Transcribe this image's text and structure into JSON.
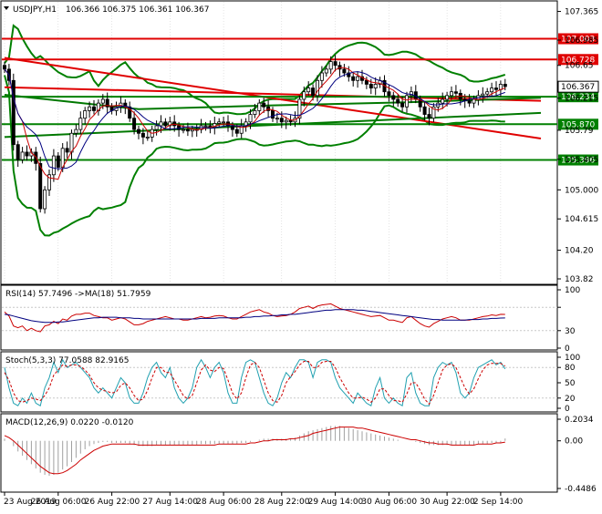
{
  "colors": {
    "bg": "#ffffff",
    "border": "#000000",
    "grid": "#c8c8c8",
    "resistance_line": "#e00000",
    "support_line": "#007800",
    "band": "#008000",
    "ma_fast": "#cc0000",
    "ma_slow": "#000080",
    "price_label_red": "#e00000",
    "price_label_green": "#008000",
    "current_price_bg": "#ffffff",
    "rsi_line": "#cc0000",
    "rsi_ma": "#000080",
    "stoch_main": "#20a0b0",
    "stoch_signal": "#cc0000",
    "macd_hist": "#a0a0a0",
    "macd_signal": "#cc0000"
  },
  "header": {
    "symbol_text": "USDJPY,H1",
    "ohlc_text": "106.366 106.375 106.361 106.367",
    "collapse_icon": "triangle-down-icon"
  },
  "chart_data": [
    {
      "type": "candlestick",
      "title": "USDJPY,H1",
      "ylim": [
        103.82,
        107.42
      ],
      "y_ticks": [
        107.365,
        106.985,
        106.65,
        106.215,
        105.79,
        105.405,
        105.0,
        104.615,
        104.2,
        103.82
      ],
      "y_tick_labels": [
        "107.365",
        "106.985",
        "106.65",
        "106.215",
        "105.79",
        "105.405",
        "105.000",
        "104.615",
        "104.20",
        "103.82"
      ],
      "current_price": 106.367,
      "horizontal_levels": [
        {
          "value": 107.003,
          "label": "107.003",
          "color": "red"
        },
        {
          "value": 106.728,
          "label": "106.728",
          "color": "red"
        },
        {
          "value": 106.234,
          "label": "106.234",
          "color": "green"
        },
        {
          "value": 105.87,
          "label": "105.870",
          "color": "green"
        },
        {
          "value": 105.396,
          "label": "105.396",
          "color": "green"
        }
      ],
      "trend_lines": [
        {
          "color": "red",
          "points": [
            [
              0,
              106.75
            ],
            [
              120,
              105.68
            ]
          ]
        },
        {
          "color": "red",
          "points": [
            [
              0,
              106.36
            ],
            [
              120,
              106.18
            ]
          ]
        },
        {
          "color": "green",
          "points": [
            [
              0,
              105.7
            ],
            [
              120,
              106.02
            ]
          ]
        },
        {
          "color": "green",
          "points": [
            [
              0,
              106.26
            ],
            [
              30,
              106.07
            ],
            [
              60,
              106.12
            ],
            [
              90,
              106.16
            ],
            [
              120,
              106.22
            ]
          ]
        }
      ],
      "x_range": [
        0,
        120
      ],
      "x_tick_positions": [
        0,
        12,
        24,
        37,
        49,
        62,
        74,
        86,
        99,
        111
      ],
      "x_tick_labels": [
        "23 Aug 2019",
        "26 Aug 06:00",
        "26 Aug 22:00",
        "27 Aug 14:00",
        "28 Aug 06:00",
        "28 Aug 22:00",
        "29 Aug 14:00",
        "30 Aug 06:00",
        "30 Aug 22:00",
        "2 Sep 14:00"
      ],
      "close_series": [
        106.6,
        106.45,
        105.6,
        105.4,
        105.5,
        105.45,
        105.5,
        105.35,
        104.75,
        105.0,
        105.2,
        105.45,
        105.3,
        105.55,
        105.5,
        105.75,
        105.8,
        105.95,
        106.05,
        106.1,
        106.05,
        106.15,
        106.2,
        106.1,
        106.05,
        106.1,
        106.15,
        106.1,
        105.95,
        105.8,
        105.75,
        105.7,
        105.7,
        105.8,
        105.85,
        105.9,
        105.85,
        105.9,
        105.85,
        105.8,
        105.8,
        105.78,
        105.8,
        105.8,
        105.85,
        105.85,
        105.83,
        105.88,
        105.9,
        105.9,
        105.85,
        105.8,
        105.75,
        105.85,
        105.9,
        106.0,
        106.05,
        106.15,
        106.1,
        106.05,
        105.95,
        105.95,
        105.9,
        105.92,
        105.9,
        105.95,
        106.2,
        106.3,
        106.35,
        106.25,
        106.45,
        106.55,
        106.6,
        106.7,
        106.65,
        106.6,
        106.55,
        106.5,
        106.45,
        106.5,
        106.45,
        106.4,
        106.35,
        106.4,
        106.45,
        106.3,
        106.25,
        106.2,
        106.15,
        106.1,
        106.25,
        106.3,
        106.2,
        106.1,
        106.0,
        105.95,
        106.1,
        106.15,
        106.2,
        106.25,
        106.3,
        106.28,
        106.2,
        106.18,
        106.15,
        106.2,
        106.25,
        106.27,
        106.3,
        106.35,
        106.33,
        106.4,
        106.37
      ]
    },
    {
      "type": "line",
      "title": "RSI(14) 57.7496 ->MA(18) 51.7959",
      "ylim": [
        0,
        100
      ],
      "y_ticks": [
        100,
        70,
        30,
        0
      ],
      "y_tick_labels": [
        "100",
        "",
        "30",
        "0"
      ],
      "levels": [
        70,
        30
      ],
      "series": [
        {
          "name": "RSI(14)",
          "values": [
            62,
            55,
            38,
            35,
            38,
            30,
            34,
            30,
            28,
            38,
            40,
            46,
            42,
            50,
            48,
            55,
            58,
            58,
            60,
            60,
            56,
            54,
            52,
            52,
            48,
            50,
            52,
            50,
            45,
            40,
            40,
            42,
            46,
            48,
            50,
            52,
            54,
            52,
            50,
            50,
            48,
            48,
            50,
            52,
            54,
            52,
            53,
            55,
            56,
            55,
            52,
            50,
            50,
            54,
            58,
            62,
            64,
            66,
            62,
            60,
            56,
            54,
            55,
            56,
            58,
            62,
            68,
            70,
            72,
            68,
            72,
            74,
            75,
            76,
            72,
            68,
            66,
            64,
            62,
            60,
            58,
            56,
            54,
            55,
            56,
            52,
            48,
            48,
            46,
            44,
            52,
            54,
            48,
            42,
            38,
            36,
            42,
            46,
            50,
            52,
            54,
            52,
            48,
            48,
            48,
            50,
            52,
            54,
            55,
            57,
            56,
            58,
            57.7496
          ]
        },
        {
          "name": "MA(18)",
          "values": [
            58,
            57,
            55,
            53,
            51,
            49,
            47,
            46,
            45,
            44,
            44,
            44,
            45,
            45,
            46,
            47,
            48,
            49,
            50,
            51,
            52,
            52,
            53,
            53,
            53,
            53,
            52,
            52,
            52,
            51,
            51,
            50,
            50,
            50,
            50,
            50,
            50,
            50,
            50,
            50,
            50,
            50,
            50,
            50,
            51,
            51,
            51,
            51,
            52,
            52,
            52,
            52,
            52,
            52,
            53,
            53,
            54,
            54,
            55,
            55,
            56,
            56,
            57,
            57,
            58,
            58,
            59,
            60,
            61,
            62,
            63,
            64,
            65,
            65,
            66,
            66,
            66,
            66,
            66,
            65,
            65,
            64,
            63,
            62,
            61,
            60,
            59,
            58,
            57,
            56,
            55,
            54,
            53,
            52,
            51,
            50,
            49,
            49,
            48,
            48,
            48,
            48,
            48,
            48,
            49,
            49,
            49,
            50,
            50,
            51,
            51,
            51.5,
            51.7959
          ]
        }
      ]
    },
    {
      "type": "line",
      "title": "Stoch(5,3,3) 77.0588 82.9165",
      "ylim": [
        0,
        100
      ],
      "y_ticks": [
        100,
        80,
        50,
        20,
        0
      ],
      "y_tick_labels": [
        "100",
        "80",
        "50",
        "20",
        "0"
      ],
      "levels": [
        80,
        20
      ],
      "series": [
        {
          "name": "%K",
          "values": [
            80,
            40,
            10,
            5,
            20,
            10,
            30,
            10,
            5,
            40,
            60,
            90,
            70,
            95,
            80,
            85,
            90,
            80,
            70,
            60,
            40,
            30,
            40,
            30,
            20,
            40,
            60,
            50,
            20,
            10,
            10,
            30,
            60,
            80,
            90,
            70,
            60,
            80,
            40,
            20,
            10,
            20,
            40,
            80,
            95,
            80,
            60,
            80,
            90,
            70,
            30,
            10,
            10,
            60,
            90,
            95,
            90,
            60,
            30,
            10,
            5,
            20,
            50,
            70,
            60,
            80,
            95,
            95,
            90,
            60,
            90,
            95,
            95,
            90,
            60,
            40,
            30,
            20,
            10,
            30,
            20,
            10,
            5,
            40,
            60,
            20,
            10,
            20,
            10,
            5,
            60,
            70,
            30,
            10,
            5,
            5,
            60,
            80,
            90,
            85,
            90,
            70,
            30,
            20,
            30,
            60,
            80,
            85,
            90,
            95,
            85,
            90,
            77.0588
          ]
        },
        {
          "name": "%D",
          "values": [
            70,
            55,
            30,
            15,
            12,
            15,
            20,
            18,
            15,
            25,
            40,
            65,
            75,
            85,
            82,
            85,
            85,
            82,
            75,
            65,
            50,
            40,
            35,
            33,
            30,
            32,
            45,
            50,
            40,
            25,
            15,
            18,
            35,
            60,
            80,
            80,
            70,
            70,
            55,
            40,
            25,
            18,
            25,
            50,
            75,
            85,
            75,
            72,
            80,
            78,
            55,
            30,
            18,
            30,
            60,
            85,
            90,
            80,
            55,
            30,
            15,
            12,
            25,
            50,
            62,
            72,
            85,
            92,
            92,
            80,
            80,
            90,
            92,
            92,
            80,
            60,
            45,
            30,
            20,
            20,
            22,
            18,
            12,
            20,
            38,
            38,
            25,
            15,
            15,
            12,
            28,
            50,
            50,
            35,
            18,
            8,
            25,
            50,
            75,
            85,
            87,
            80,
            60,
            40,
            28,
            38,
            58,
            75,
            85,
            88,
            88,
            88,
            82.9165
          ]
        }
      ]
    },
    {
      "type": "bar",
      "title": "MACD(12,26,9) 0.0220 -0.0120",
      "ylim": [
        -0.4486,
        0.2034
      ],
      "y_ticks": [
        0.2034,
        0.0,
        -0.4486
      ],
      "y_tick_labels": [
        "0.2034",
        "0.00",
        "-0.4486"
      ],
      "series": [
        {
          "name": "MACD",
          "values": [
            0.02,
            0.0,
            -0.05,
            -0.1,
            -0.14,
            -0.18,
            -0.22,
            -0.26,
            -0.3,
            -0.32,
            -0.33,
            -0.32,
            -0.3,
            -0.27,
            -0.24,
            -0.2,
            -0.16,
            -0.12,
            -0.08,
            -0.05,
            -0.03,
            -0.02,
            -0.01,
            -0.01,
            -0.02,
            -0.02,
            -0.02,
            -0.02,
            -0.03,
            -0.04,
            -0.05,
            -0.05,
            -0.05,
            -0.05,
            -0.04,
            -0.04,
            -0.04,
            -0.04,
            -0.04,
            -0.04,
            -0.04,
            -0.04,
            -0.04,
            -0.04,
            -0.03,
            -0.03,
            -0.03,
            -0.03,
            -0.03,
            -0.03,
            -0.03,
            -0.03,
            -0.03,
            -0.02,
            -0.02,
            -0.01,
            0.0,
            0.01,
            0.02,
            0.02,
            0.02,
            0.02,
            0.02,
            0.02,
            0.02,
            0.03,
            0.05,
            0.07,
            0.09,
            0.1,
            0.11,
            0.12,
            0.13,
            0.14,
            0.14,
            0.14,
            0.13,
            0.12,
            0.11,
            0.1,
            0.09,
            0.08,
            0.07,
            0.06,
            0.05,
            0.04,
            0.03,
            0.02,
            0.01,
            0.0,
            0.0,
            0.0,
            -0.01,
            -0.02,
            -0.03,
            -0.04,
            -0.04,
            -0.04,
            -0.04,
            -0.04,
            -0.04,
            -0.04,
            -0.04,
            -0.04,
            -0.04,
            -0.04,
            -0.03,
            -0.03,
            -0.03,
            -0.02,
            -0.02,
            -0.02,
            0.022
          ]
        },
        {
          "name": "Signal",
          "values": [
            0.05,
            0.03,
            0.0,
            -0.04,
            -0.08,
            -0.12,
            -0.16,
            -0.2,
            -0.24,
            -0.27,
            -0.3,
            -0.31,
            -0.31,
            -0.3,
            -0.28,
            -0.25,
            -0.22,
            -0.18,
            -0.15,
            -0.12,
            -0.09,
            -0.07,
            -0.05,
            -0.04,
            -0.03,
            -0.03,
            -0.03,
            -0.03,
            -0.03,
            -0.03,
            -0.04,
            -0.04,
            -0.04,
            -0.04,
            -0.04,
            -0.04,
            -0.04,
            -0.04,
            -0.04,
            -0.04,
            -0.04,
            -0.04,
            -0.04,
            -0.04,
            -0.04,
            -0.04,
            -0.04,
            -0.04,
            -0.03,
            -0.03,
            -0.03,
            -0.03,
            -0.03,
            -0.03,
            -0.03,
            -0.02,
            -0.02,
            -0.01,
            0.0,
            0.0,
            0.01,
            0.01,
            0.01,
            0.01,
            0.02,
            0.02,
            0.03,
            0.04,
            0.05,
            0.07,
            0.08,
            0.09,
            0.1,
            0.11,
            0.12,
            0.13,
            0.13,
            0.13,
            0.13,
            0.12,
            0.12,
            0.11,
            0.1,
            0.09,
            0.08,
            0.07,
            0.06,
            0.05,
            0.04,
            0.03,
            0.02,
            0.01,
            0.01,
            0.0,
            -0.01,
            -0.02,
            -0.02,
            -0.03,
            -0.03,
            -0.03,
            -0.04,
            -0.04,
            -0.04,
            -0.04,
            -0.04,
            -0.04,
            -0.03,
            -0.03,
            -0.03,
            -0.03,
            -0.02,
            -0.02,
            -0.012
          ]
        }
      ]
    }
  ]
}
